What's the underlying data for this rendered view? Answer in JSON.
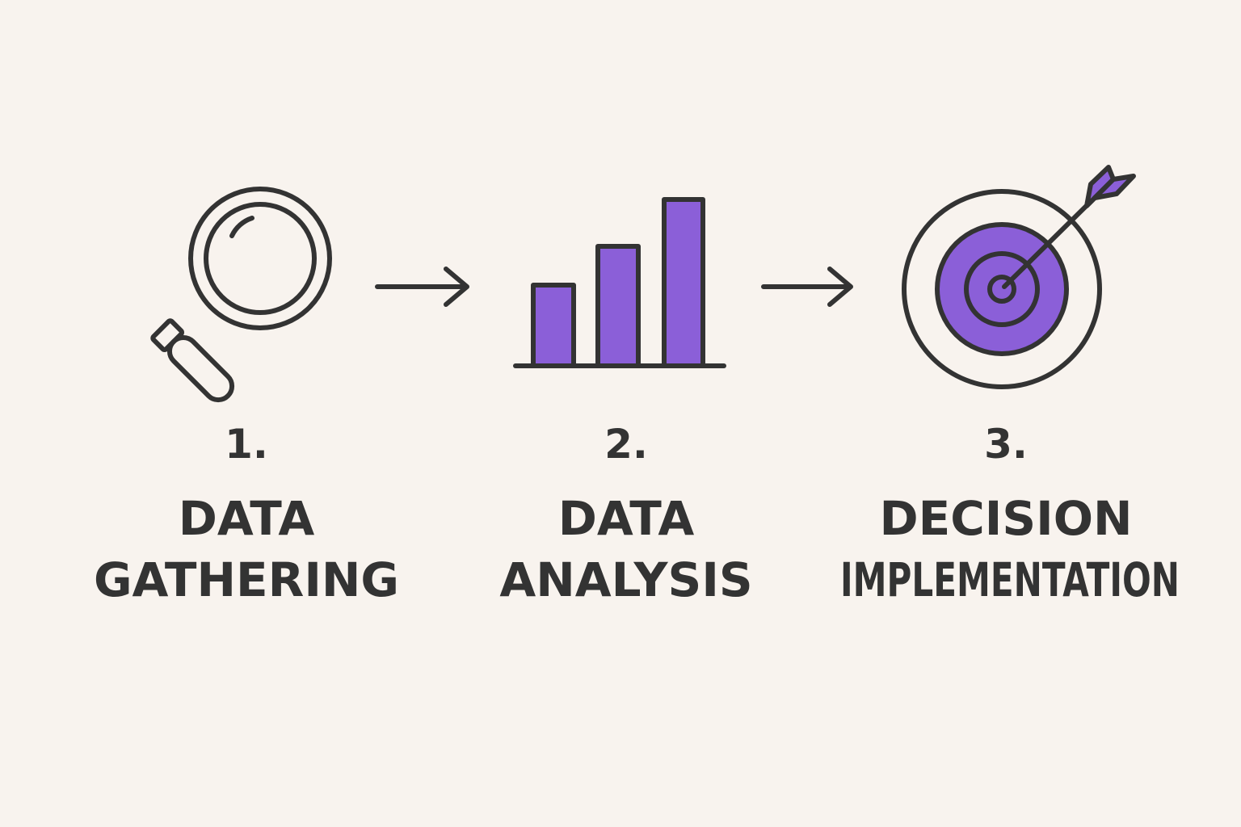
{
  "steps": [
    {
      "number": "1.",
      "lines": [
        "DATA",
        "GATHERING"
      ]
    },
    {
      "number": "2.",
      "lines": [
        "DATA",
        "ANALYSIS"
      ]
    },
    {
      "number": "3.",
      "lines": [
        "DECISION",
        "IMPLEMENTATION"
      ]
    }
  ]
}
